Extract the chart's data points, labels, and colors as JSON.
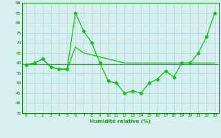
{
  "x": [
    0,
    1,
    2,
    3,
    4,
    5,
    6,
    7,
    8,
    9,
    10,
    11,
    12,
    13,
    14,
    15,
    16,
    17,
    18,
    19,
    20,
    21,
    22,
    23
  ],
  "line1": [
    59,
    60,
    62,
    58,
    57,
    57,
    85,
    76,
    70,
    60,
    51,
    50,
    45,
    46,
    45,
    50,
    52,
    56,
    53,
    60,
    60,
    65,
    73,
    85
  ],
  "line2": [
    59,
    60,
    62,
    58,
    57,
    57,
    68,
    65,
    64,
    63,
    62,
    61,
    60,
    60,
    60,
    60,
    60,
    60,
    60,
    60,
    60,
    60,
    60,
    60
  ],
  "hline": 59.5,
  "bg_color": "#d6f0f0",
  "grid_color": "#b0d4d4",
  "line_color": "#00cc00",
  "ylim_min": 35,
  "ylim_max": 90,
  "yticks": [
    35,
    40,
    45,
    50,
    55,
    60,
    65,
    70,
    75,
    80,
    85,
    90
  ],
  "xlabel": "Humidité relative (%)",
  "xlabel_color": "#00aa00",
  "tick_color": "#006600",
  "tick_fontsize": 4.2,
  "xlabel_fontsize": 5.2
}
